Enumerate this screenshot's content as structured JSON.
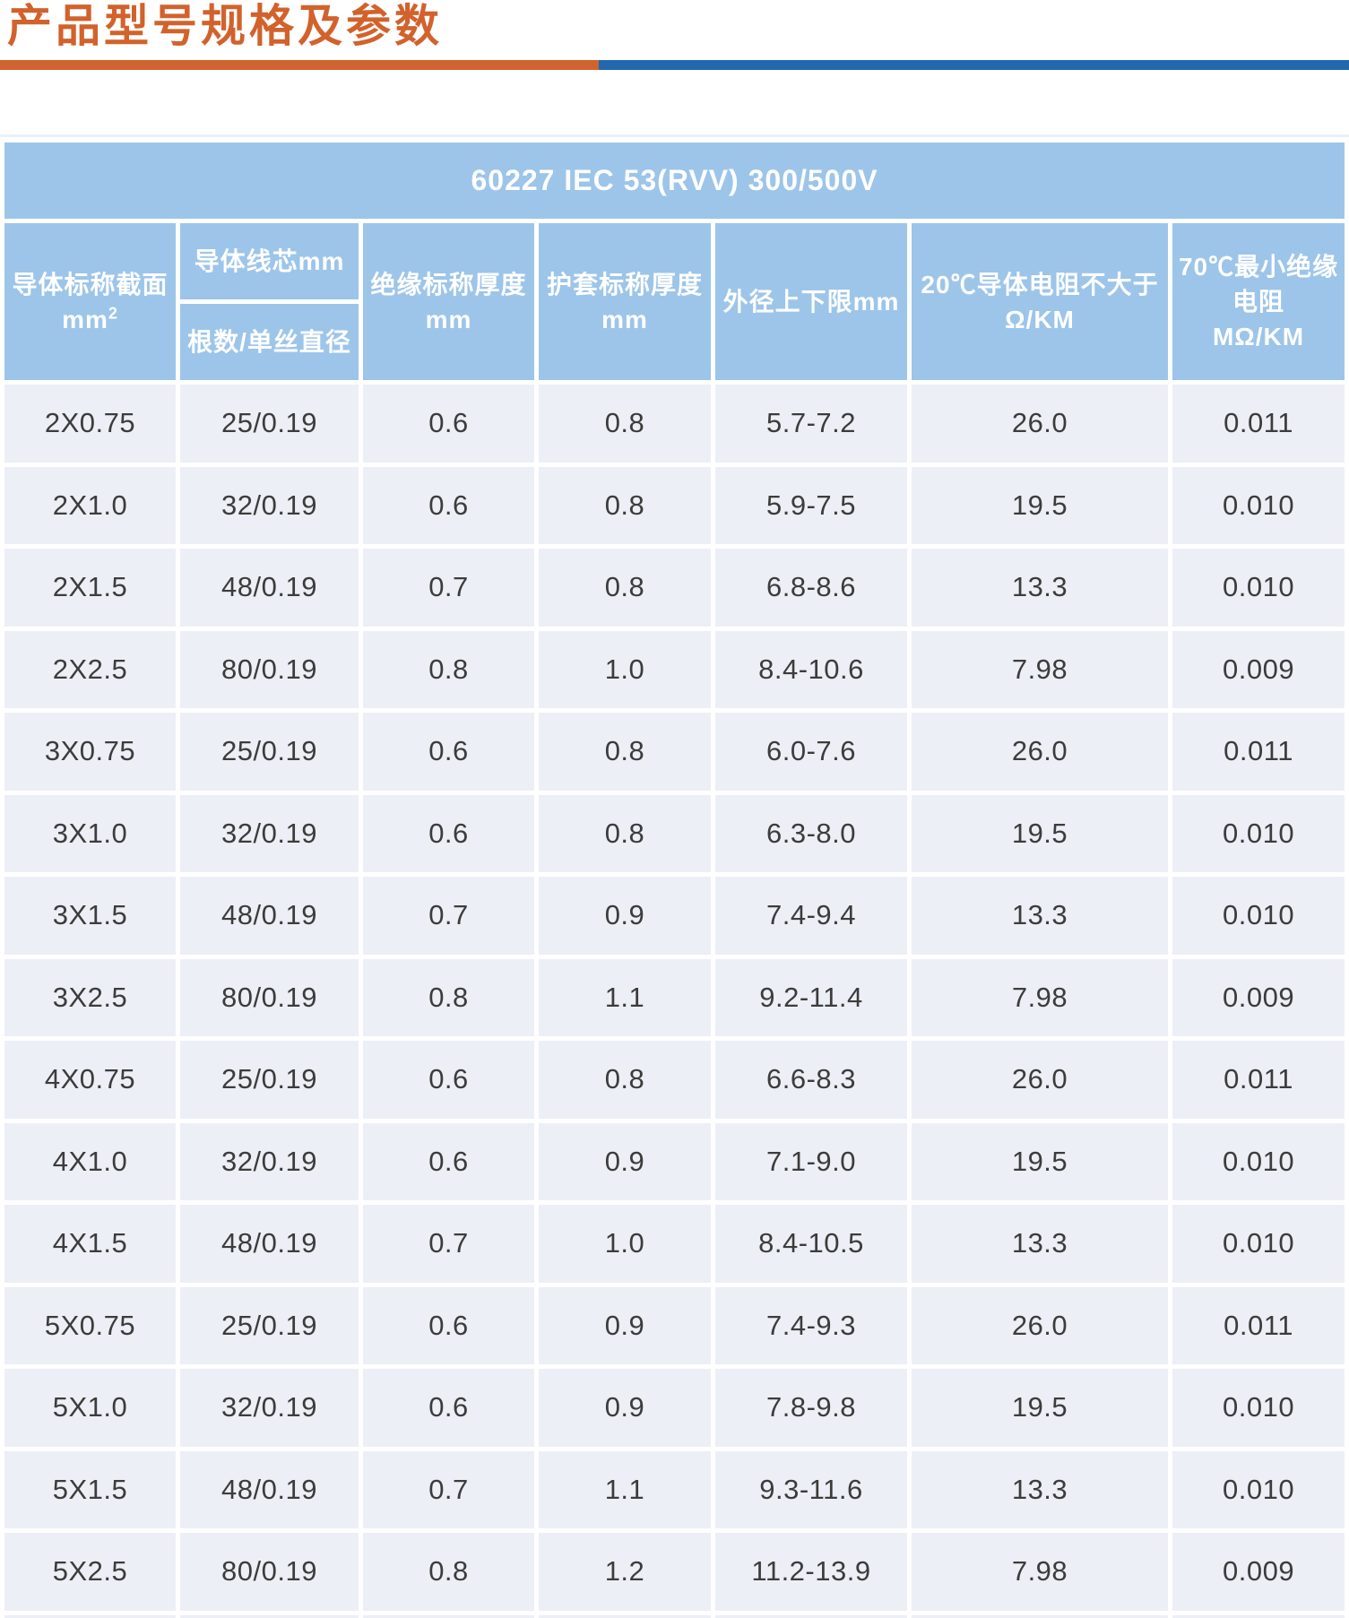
{
  "page_title": "产品型号规格及参数",
  "colors": {
    "title_orange": "#d2622c",
    "divider_orange": "#d0632e",
    "divider_blue": "#2268ae",
    "header_blue": "#9cc5e9",
    "row_background": "#eceff5",
    "data_text": "#3c3c3c"
  },
  "table": {
    "caption": "60227 IEC 53(RVV) 300/500V",
    "headers": {
      "conductor_section_line1": "导体标称截面",
      "conductor_section_line2": "mm",
      "conductor_section_sup": "2",
      "conductor_core": "导体线芯mm",
      "strand_diameter": "根数/单丝直径",
      "insulation_line1": "绝缘标称厚度",
      "insulation_line2": "mm",
      "sheath_line1": "护套标称厚度",
      "sheath_line2": "mm",
      "outer_diameter": "外径上下限mm",
      "resistance_line1": "20℃导体电阻不大于",
      "resistance_line2": "Ω/KM",
      "insulation_res_line1": "70℃最小绝缘电阻",
      "insulation_res_line2": "MΩ/KM"
    },
    "rows": [
      [
        "2X0.75",
        "25/0.19",
        "0.6",
        "0.8",
        "5.7-7.2",
        "26.0",
        "0.011"
      ],
      [
        "2X1.0",
        "32/0.19",
        "0.6",
        "0.8",
        "5.9-7.5",
        "19.5",
        "0.010"
      ],
      [
        "2X1.5",
        "48/0.19",
        "0.7",
        "0.8",
        "6.8-8.6",
        "13.3",
        "0.010"
      ],
      [
        "2X2.5",
        "80/0.19",
        "0.8",
        "1.0",
        "8.4-10.6",
        "7.98",
        "0.009"
      ],
      [
        "3X0.75",
        "25/0.19",
        "0.6",
        "0.8",
        "6.0-7.6",
        "26.0",
        "0.011"
      ],
      [
        "3X1.0",
        "32/0.19",
        "0.6",
        "0.8",
        "6.3-8.0",
        "19.5",
        "0.010"
      ],
      [
        "3X1.5",
        "48/0.19",
        "0.7",
        "0.9",
        "7.4-9.4",
        "13.3",
        "0.010"
      ],
      [
        "3X2.5",
        "80/0.19",
        "0.8",
        "1.1",
        "9.2-11.4",
        "7.98",
        "0.009"
      ],
      [
        "4X0.75",
        "25/0.19",
        "0.6",
        "0.8",
        "6.6-8.3",
        "26.0",
        "0.011"
      ],
      [
        "4X1.0",
        "32/0.19",
        "0.6",
        "0.9",
        "7.1-9.0",
        "19.5",
        "0.010"
      ],
      [
        "4X1.5",
        "48/0.19",
        "0.7",
        "1.0",
        "8.4-10.5",
        "13.3",
        "0.010"
      ],
      [
        "5X0.75",
        "25/0.19",
        "0.6",
        "0.9",
        "7.4-9.3",
        "26.0",
        "0.011"
      ],
      [
        "5X1.0",
        "32/0.19",
        "0.6",
        "0.9",
        "7.8-9.8",
        "19.5",
        "0.010"
      ],
      [
        "5X1.5",
        "48/0.19",
        "0.7",
        "1.1",
        "9.3-11.6",
        "13.3",
        "0.010"
      ],
      [
        "5X2.5",
        "80/0.19",
        "0.8",
        "1.2",
        "11.2-13.9",
        "7.98",
        "0.009"
      ]
    ]
  }
}
